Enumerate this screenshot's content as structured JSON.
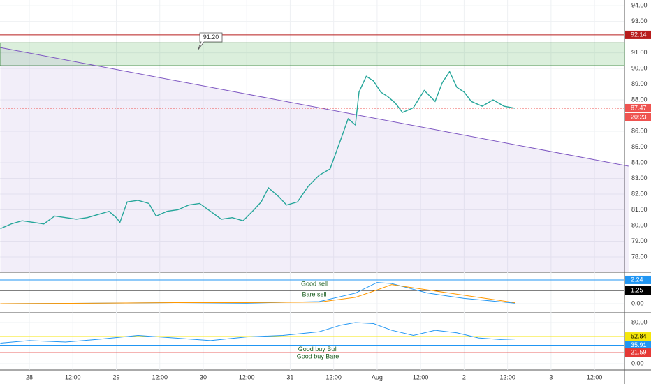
{
  "chart_data": [
    {
      "type": "line",
      "x": [
        -8,
        -5,
        -2,
        1,
        4,
        7,
        10,
        13,
        16,
        19,
        22,
        24,
        25,
        27,
        30,
        33,
        35,
        38,
        41,
        44,
        47,
        50,
        53,
        56,
        59,
        62,
        64,
        66,
        69,
        71,
        74,
        77,
        80,
        83,
        86,
        88,
        90,
        91,
        93,
        95,
        97,
        99,
        101,
        103,
        106,
        109,
        112,
        114,
        116,
        118,
        120,
        122,
        125,
        128,
        131,
        134
      ],
      "series": [
        {
          "color": "#26a69a",
          "values": [
            79.8,
            80.1,
            80.3,
            80.2,
            80.1,
            80.6,
            80.5,
            80.4,
            80.5,
            80.7,
            80.9,
            80.5,
            80.2,
            81.5,
            81.6,
            81.4,
            80.6,
            80.9,
            81.0,
            81.3,
            81.4,
            80.9,
            80.4,
            80.5,
            80.3,
            81.0,
            81.5,
            82.4,
            81.8,
            81.3,
            81.5,
            82.5,
            83.2,
            83.6,
            85.5,
            86.8,
            86.4,
            88.5,
            89.5,
            89.2,
            88.5,
            88.2,
            87.8,
            87.2,
            87.5,
            88.6,
            87.9,
            89.1,
            89.8,
            88.8,
            88.5,
            87.9,
            87.6,
            88.0,
            87.6,
            87.47
          ]
        }
      ],
      "xlim": [
        -8.1,
        163.5
      ],
      "xticks": [
        {
          "value": 0,
          "label": "28"
        },
        {
          "value": 12,
          "label": "12:00"
        },
        {
          "value": 24,
          "label": "29"
        },
        {
          "value": 36,
          "label": "12:00"
        },
        {
          "value": 48,
          "label": "30"
        },
        {
          "value": 60,
          "label": "12:00"
        },
        {
          "value": 72,
          "label": "31"
        },
        {
          "value": 84,
          "label": "12:00"
        },
        {
          "value": 96,
          "label": "Aug"
        },
        {
          "value": 108,
          "label": "12:00"
        },
        {
          "value": 120,
          "label": "2"
        },
        {
          "value": 132,
          "label": "12:00"
        },
        {
          "value": 144,
          "label": "3"
        },
        {
          "value": 156,
          "label": "12:00"
        }
      ],
      "ylim": [
        94.36,
        77.02
      ],
      "yticks": [
        {
          "value": 94,
          "label": "94.00"
        },
        {
          "value": 93,
          "label": "93.00"
        },
        {
          "value": 91,
          "label": "91.00"
        },
        {
          "value": 90,
          "label": "90.00"
        },
        {
          "value": 89,
          "label": "89.00"
        },
        {
          "value": 88,
          "label": "88.00"
        },
        {
          "value": 86,
          "label": "86.00"
        },
        {
          "value": 85,
          "label": "85.00"
        },
        {
          "value": 84,
          "label": "84.00"
        },
        {
          "value": 83,
          "label": "83.00"
        },
        {
          "value": 82,
          "label": "82.00"
        },
        {
          "value": 81,
          "label": "81.00"
        },
        {
          "value": 80,
          "label": "80.00"
        },
        {
          "value": 79,
          "label": "79.00"
        },
        {
          "value": 78,
          "label": "78.00"
        }
      ],
      "levels": [
        {
          "value": 92.14,
          "label": "92.14",
          "color": "#b71c1c"
        },
        {
          "value": 87.47,
          "label": "87.47",
          "color": "#ef5350"
        }
      ],
      "countdown": "20:23",
      "zone": [
        90.18,
        91.64
      ],
      "callout": "91.20",
      "trendline": {
        "x": [
          -8,
          165.4
        ],
        "y": [
          91.33,
          83.78
        ]
      }
    },
    {
      "type": "line",
      "x": [
        -8,
        20,
        40,
        60,
        80,
        90,
        96,
        100,
        110,
        120,
        134
      ],
      "series": [
        {
          "color": "#2196f3",
          "values": [
            0.0,
            0.05,
            0.1,
            0.05,
            0.2,
            1.0,
            2.0,
            1.9,
            1.0,
            0.5,
            0.05
          ]
        },
        {
          "color": "#ff9800",
          "values": [
            0.0,
            0.05,
            0.1,
            0.1,
            0.15,
            0.6,
            1.3,
            1.8,
            1.3,
            0.8,
            0.1
          ]
        }
      ],
      "ylim": [
        2.83,
        -0.79
      ],
      "yticks": [
        {
          "value": 0,
          "label": "0.00"
        }
      ],
      "levels": [
        {
          "value": 2.24,
          "label": "2.24",
          "color": "#2196f3",
          "text": "Good sell"
        },
        {
          "value": 1.25,
          "label": "1.25",
          "color": "#000000",
          "text": "Bare sell"
        }
      ]
    },
    {
      "type": "line",
      "x": [
        -8,
        0,
        10,
        20,
        30,
        40,
        50,
        60,
        70,
        80,
        86,
        90,
        95,
        100,
        106,
        112,
        118,
        124,
        130,
        134
      ],
      "series": [
        {
          "color": "#2196f3",
          "values": [
            40,
            45,
            42,
            48,
            55,
            50,
            45,
            52,
            55,
            62,
            75,
            80,
            78,
            65,
            55,
            65,
            60,
            50,
            47,
            48
          ]
        }
      ],
      "ylim": [
        96.3,
        -12.2
      ],
      "yticks": [
        {
          "value": 80,
          "label": "80.00"
        },
        {
          "value": 0,
          "label": "0.00"
        }
      ],
      "levels": [
        {
          "value": 52.84,
          "label": "52.84",
          "color": "#f5e60a"
        },
        {
          "value": 35.91,
          "label": "35.91",
          "color": "#2196f3",
          "text": "Good buy Bull"
        },
        {
          "value": 21.59,
          "label": "21.59",
          "color": "#e53935",
          "text": "Good buy Bare"
        }
      ]
    }
  ]
}
